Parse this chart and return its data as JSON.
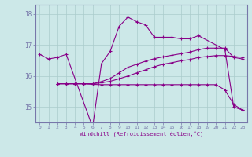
{
  "xlabel": "Windchill (Refroidissement éolien,°C)",
  "background_color": "#cce8e8",
  "line_color": "#880088",
  "grid_color": "#aacccc",
  "spine_color": "#7777aa",
  "tick_color": "#7777aa",
  "label_color": "#880088",
  "xlim": [
    -0.5,
    23.5
  ],
  "ylim": [
    14.5,
    18.3
  ],
  "yticks": [
    15,
    16,
    17,
    18
  ],
  "xticks": [
    0,
    1,
    2,
    3,
    4,
    5,
    6,
    7,
    8,
    9,
    10,
    11,
    12,
    13,
    14,
    15,
    16,
    17,
    18,
    19,
    20,
    21,
    22,
    23
  ],
  "series": {
    "line1_x": [
      0,
      1,
      2,
      3,
      6,
      7,
      8,
      9,
      10,
      11,
      12,
      13,
      14,
      15,
      16,
      17,
      18,
      21,
      22,
      23
    ],
    "line1_y": [
      16.7,
      16.55,
      16.6,
      16.7,
      14.35,
      16.4,
      16.8,
      17.6,
      17.9,
      17.75,
      17.65,
      17.25,
      17.25,
      17.25,
      17.2,
      17.2,
      17.3,
      16.85,
      15.0,
      14.9
    ],
    "line2_x": [
      2,
      3,
      4,
      5,
      6,
      7,
      8,
      9,
      10,
      11,
      12,
      13,
      14,
      15,
      16,
      17,
      18,
      19,
      20,
      21,
      22,
      23
    ],
    "line2_y": [
      15.75,
      15.75,
      15.75,
      15.75,
      15.75,
      15.82,
      15.92,
      16.1,
      16.28,
      16.38,
      16.48,
      16.56,
      16.62,
      16.67,
      16.72,
      16.77,
      16.85,
      16.9,
      16.9,
      16.9,
      16.6,
      16.55
    ],
    "line3_x": [
      2,
      3,
      4,
      5,
      6,
      7,
      8,
      9,
      10,
      11,
      12,
      13,
      14,
      15,
      16,
      17,
      18,
      19,
      20,
      21,
      22,
      23
    ],
    "line3_y": [
      15.75,
      15.75,
      15.75,
      15.75,
      15.75,
      15.78,
      15.83,
      15.91,
      16.0,
      16.1,
      16.2,
      16.3,
      16.38,
      16.43,
      16.49,
      16.53,
      16.6,
      16.63,
      16.66,
      16.66,
      16.63,
      16.6
    ],
    "line4_x": [
      2,
      3,
      4,
      5,
      6,
      7,
      8,
      9,
      10,
      11,
      12,
      13,
      14,
      15,
      16,
      17,
      18,
      19,
      20,
      21,
      22,
      23
    ],
    "line4_y": [
      15.75,
      15.75,
      15.75,
      15.75,
      15.73,
      15.72,
      15.72,
      15.72,
      15.72,
      15.72,
      15.72,
      15.72,
      15.72,
      15.72,
      15.72,
      15.72,
      15.72,
      15.72,
      15.72,
      15.55,
      15.08,
      14.9
    ]
  },
  "marker": "+",
  "markersize": 3,
  "linewidth": 0.8
}
